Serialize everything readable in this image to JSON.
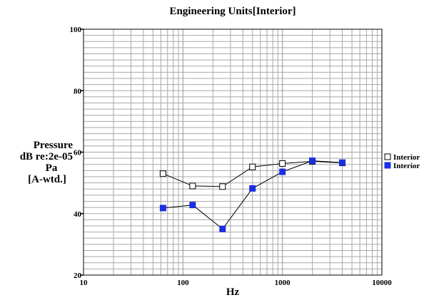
{
  "chart_data": {
    "type": "line",
    "title": "Engineering Units[Interior]",
    "xlabel": "Hz",
    "ylabel_lines": [
      "Pressure",
      "dB re:2e-05",
      "Pa",
      "[A-wtd.]"
    ],
    "x_scale": "log",
    "xlim": [
      10,
      10000
    ],
    "ylim": [
      20,
      100
    ],
    "x_ticks": [
      10,
      100,
      1000,
      10000
    ],
    "x_tick_labels": [
      "10",
      "100",
      "1000",
      "10000"
    ],
    "y_ticks": [
      20,
      40,
      60,
      80,
      100
    ],
    "y_tick_labels": [
      "20",
      "40",
      "60",
      "80",
      "100"
    ],
    "grid": true,
    "legend_position": "right",
    "series": [
      {
        "name": "Interior",
        "marker": "open-square",
        "color": "#000000",
        "x": [
          63,
          125,
          250,
          500,
          1000,
          2000,
          4000
        ],
        "y": [
          53,
          49,
          48.8,
          55.2,
          56.3,
          57,
          56.5
        ]
      },
      {
        "name": "Interior",
        "marker": "filled-square",
        "color": "#1a2fe0",
        "x": [
          63,
          125,
          250,
          500,
          1000,
          2000,
          4000
        ],
        "y": [
          41.8,
          42.8,
          35,
          48.2,
          53.6,
          57.2,
          56.6
        ]
      }
    ]
  }
}
